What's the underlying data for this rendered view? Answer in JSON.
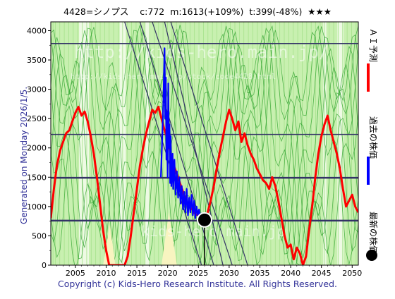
{
  "header": {
    "code_name": "4428=シノプス",
    "current": "c:772",
    "max": "m:1613(+109%)",
    "target": "t:399(-48%)",
    "rating": "★★★"
  },
  "side_label": "Generated on Monday 2026/1/5.",
  "footer": "Copyright (c) Kids-Hero Research Institute. All Rights Reserved.",
  "watermarks": [
    "http://kids-hero.main.jp/",
    "http://kids-hero.main.jp/stock/code4428.html",
    "kids-hero.main.jp"
  ],
  "legend": [
    {
      "label": "ＡＩ予測",
      "color": "#ff0000",
      "marker": "bar"
    },
    {
      "label": "過去の株価",
      "color": "#0000ff",
      "marker": "bar"
    },
    {
      "label": "最新の株価",
      "color": "#000000",
      "marker": "dot"
    }
  ],
  "chart_data": {
    "type": "line",
    "xlim": [
      2001,
      2051
    ],
    "ylim": [
      0,
      4150
    ],
    "x_ticks": [
      2005,
      2010,
      2015,
      2020,
      2025,
      2030,
      2035,
      2040,
      2045,
      2050
    ],
    "y_ticks": [
      0,
      500,
      1000,
      1500,
      2000,
      2500,
      3000,
      3500,
      4000
    ],
    "horizontal_levels": [
      3780,
      2230,
      1490,
      760
    ],
    "latest_point": {
      "x": 2026.0,
      "y": 772
    },
    "diagonal_lines": [
      {
        "x1": 2013.0,
        "y1": 4150,
        "x2": 2025.5,
        "y2": 0
      },
      {
        "x1": 2015.5,
        "y1": 4150,
        "x2": 2027.5,
        "y2": 0
      },
      {
        "x1": 2017.5,
        "y1": 4150,
        "x2": 2030.5,
        "y2": 0
      },
      {
        "x1": 2020.5,
        "y1": 4150,
        "x2": 2033.0,
        "y2": 0
      },
      {
        "x1": 2019.5,
        "y1": 4150,
        "x2": 2029.0,
        "y2": 0
      }
    ],
    "series": [
      {
        "name": "ＡＩ予測",
        "color": "#ff0000",
        "points": [
          [
            2001.0,
            800
          ],
          [
            2001.5,
            1300
          ],
          [
            2002.0,
            1700
          ],
          [
            2002.5,
            1950
          ],
          [
            2003.0,
            2100
          ],
          [
            2003.5,
            2250
          ],
          [
            2004.0,
            2300
          ],
          [
            2004.5,
            2450
          ],
          [
            2005.0,
            2600
          ],
          [
            2005.5,
            2700
          ],
          [
            2006.0,
            2550
          ],
          [
            2006.5,
            2620
          ],
          [
            2007.0,
            2450
          ],
          [
            2007.5,
            2200
          ],
          [
            2008.0,
            1900
          ],
          [
            2008.5,
            1500
          ],
          [
            2009.0,
            1050
          ],
          [
            2009.5,
            600
          ],
          [
            2010.0,
            250
          ],
          [
            2010.5,
            0
          ],
          [
            2013.0,
            0
          ],
          [
            2013.5,
            150
          ],
          [
            2014.0,
            500
          ],
          [
            2014.5,
            900
          ],
          [
            2015.0,
            1300
          ],
          [
            2015.5,
            1700
          ],
          [
            2016.0,
            2000
          ],
          [
            2016.5,
            2250
          ],
          [
            2017.0,
            2450
          ],
          [
            2017.5,
            2650
          ],
          [
            2018.0,
            2600
          ],
          [
            2018.5,
            2700
          ],
          [
            2019.0,
            2500
          ],
          [
            2019.5,
            2300
          ],
          [
            2020.0,
            2150
          ],
          [
            2020.5,
            1900
          ],
          [
            2021.0,
            1700
          ],
          [
            2021.5,
            1550
          ],
          [
            2022.0,
            1400
          ],
          [
            2022.5,
            1250
          ],
          [
            2023.0,
            1100
          ],
          [
            2023.5,
            1000
          ],
          [
            2024.0,
            950
          ],
          [
            2024.5,
            870
          ],
          [
            2025.0,
            850
          ],
          [
            2025.5,
            790
          ],
          [
            2026.0,
            772
          ],
          [
            2026.5,
            900
          ],
          [
            2027.0,
            1100
          ],
          [
            2027.5,
            1350
          ],
          [
            2028.0,
            1650
          ],
          [
            2028.5,
            1950
          ],
          [
            2029.0,
            2200
          ],
          [
            2029.5,
            2450
          ],
          [
            2030.0,
            2650
          ],
          [
            2030.5,
            2500
          ],
          [
            2031.0,
            2300
          ],
          [
            2031.5,
            2450
          ],
          [
            2032.0,
            2100
          ],
          [
            2032.5,
            2250
          ],
          [
            2033.0,
            2050
          ],
          [
            2033.5,
            1900
          ],
          [
            2034.0,
            1800
          ],
          [
            2034.5,
            1650
          ],
          [
            2035.0,
            1550
          ],
          [
            2035.5,
            1450
          ],
          [
            2036.0,
            1400
          ],
          [
            2036.5,
            1300
          ],
          [
            2037.0,
            1500
          ],
          [
            2037.5,
            1350
          ],
          [
            2038.0,
            1100
          ],
          [
            2038.5,
            800
          ],
          [
            2039.0,
            500
          ],
          [
            2039.5,
            300
          ],
          [
            2040.0,
            350
          ],
          [
            2040.5,
            100
          ],
          [
            2041.0,
            300
          ],
          [
            2041.5,
            200
          ],
          [
            2042.0,
            0
          ],
          [
            2042.5,
            150
          ],
          [
            2043.0,
            600
          ],
          [
            2043.5,
            1000
          ],
          [
            2044.0,
            1500
          ],
          [
            2044.5,
            1900
          ],
          [
            2045.0,
            2200
          ],
          [
            2045.5,
            2400
          ],
          [
            2046.0,
            2550
          ],
          [
            2046.5,
            2300
          ],
          [
            2047.0,
            2100
          ],
          [
            2047.5,
            1900
          ],
          [
            2048.0,
            1650
          ],
          [
            2048.5,
            1300
          ],
          [
            2049.0,
            1000
          ],
          [
            2049.5,
            1100
          ],
          [
            2050.0,
            1200
          ],
          [
            2050.5,
            1000
          ],
          [
            2051.0,
            900
          ]
        ]
      },
      {
        "name": "過去の株価",
        "color": "#0000ff",
        "points": [
          [
            2018.9,
            1500
          ],
          [
            2019.1,
            2100
          ],
          [
            2019.3,
            2800
          ],
          [
            2019.5,
            3700
          ],
          [
            2019.6,
            2500
          ],
          [
            2019.7,
            3200
          ],
          [
            2019.8,
            1800
          ],
          [
            2019.9,
            2600
          ],
          [
            2020.0,
            1500
          ],
          [
            2020.1,
            3100
          ],
          [
            2020.2,
            2000
          ],
          [
            2020.3,
            2400
          ],
          [
            2020.4,
            1400
          ],
          [
            2020.5,
            2200
          ],
          [
            2020.6,
            1350
          ],
          [
            2020.8,
            1900
          ],
          [
            2020.9,
            1300
          ],
          [
            2021.1,
            1800
          ],
          [
            2021.3,
            1200
          ],
          [
            2021.5,
            1600
          ],
          [
            2021.7,
            1150
          ],
          [
            2021.9,
            1500
          ],
          [
            2022.1,
            1050
          ],
          [
            2022.3,
            1350
          ],
          [
            2022.5,
            950
          ],
          [
            2022.7,
            1250
          ],
          [
            2022.9,
            900
          ],
          [
            2023.1,
            1300
          ],
          [
            2023.3,
            850
          ],
          [
            2023.5,
            1150
          ],
          [
            2023.7,
            900
          ],
          [
            2023.9,
            1200
          ],
          [
            2024.1,
            850
          ],
          [
            2024.3,
            1100
          ],
          [
            2024.5,
            800
          ],
          [
            2024.7,
            1000
          ],
          [
            2024.9,
            850
          ],
          [
            2025.1,
            950
          ],
          [
            2025.3,
            800
          ],
          [
            2025.5,
            880
          ],
          [
            2025.7,
            790
          ],
          [
            2025.9,
            772
          ]
        ]
      }
    ]
  }
}
